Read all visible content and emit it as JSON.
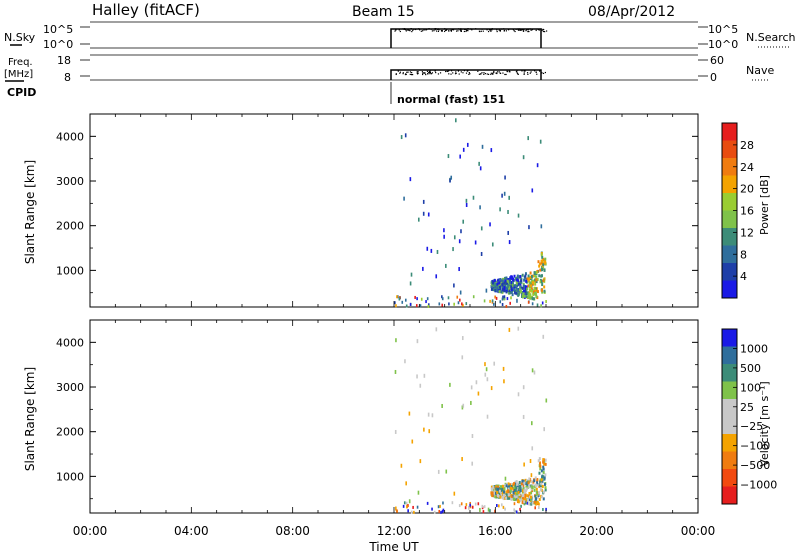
{
  "header": {
    "station": "Halley (fitACF)",
    "beam": "Beam 15",
    "date": "08/Apr/2012"
  },
  "summary_panels": {
    "nsky_label": "N.Sky",
    "nsearch_label": "N.Search",
    "nsky_ticks": [
      "10^5",
      "10^0"
    ],
    "nsearch_ticks": [
      "10^5",
      "10^0"
    ],
    "freq_label_1": "Freq.",
    "freq_label_2": "[MHz]",
    "freq_ticks": [
      "18",
      "8"
    ],
    "nave_label": "Nave",
    "nave_ticks": [
      "60",
      "0"
    ],
    "cpid_label": "CPID",
    "cpid_value": "normal (fast) 151"
  },
  "colors": {
    "power_scale": [
      "#1a1ae6",
      "#1e3fa8",
      "#2f6e9c",
      "#3c8c78",
      "#7fc24a",
      "#9acd32",
      "#f4a300",
      "#f07c10",
      "#e84c10",
      "#e61e1e"
    ],
    "velocity_scale": [
      "#e61e1e",
      "#f24a10",
      "#f07c10",
      "#f4a300",
      "#c8c8c8",
      "#c8c8c8",
      "#7fc24a",
      "#3c8c78",
      "#2f6e9c",
      "#1a1ae6"
    ]
  },
  "chart_data": [
    {
      "type": "heatmap",
      "title": "",
      "xlabel": "Time UT",
      "ylabel": "Slant Range [km]",
      "xlim": [
        "00:00",
        "24:00"
      ],
      "ylim": [
        180,
        4500
      ],
      "x_ticks": [
        "00:00",
        "04:00",
        "08:00",
        "12:00",
        "16:00",
        "20:00",
        "00:00"
      ],
      "y_ticks": [
        1000,
        2000,
        3000,
        4000
      ],
      "colorbar": {
        "label": "Power [dB]",
        "ticks": [
          "28",
          "24",
          "20",
          "16",
          "12",
          "8",
          "4"
        ],
        "range": [
          0,
          30
        ]
      },
      "data_window_ut": [
        "12:00",
        "18:00"
      ],
      "echo_region": {
        "time_ut": [
          "16:00",
          "18:00"
        ],
        "slant_range_km": [
          500,
          1400
        ]
      }
    },
    {
      "type": "heatmap",
      "title": "",
      "xlabel": "Time UT",
      "ylabel": "Slant Range [km]",
      "xlim": [
        "00:00",
        "24:00"
      ],
      "ylim": [
        180,
        4500
      ],
      "x_ticks": [
        "00:00",
        "04:00",
        "08:00",
        "12:00",
        "16:00",
        "20:00",
        "00:00"
      ],
      "y_ticks": [
        1000,
        2000,
        3000,
        4000
      ],
      "colorbar": {
        "label": "Velocity [m s⁻¹]",
        "ticks": [
          "1000",
          "500",
          "100",
          "25",
          "−25",
          "−100",
          "−500",
          "−1000"
        ],
        "range": [
          -1200,
          1200
        ]
      },
      "data_window_ut": [
        "12:00",
        "18:00"
      ],
      "echo_region": {
        "time_ut": [
          "16:00",
          "18:00"
        ],
        "slant_range_km": [
          500,
          1400
        ]
      }
    }
  ]
}
